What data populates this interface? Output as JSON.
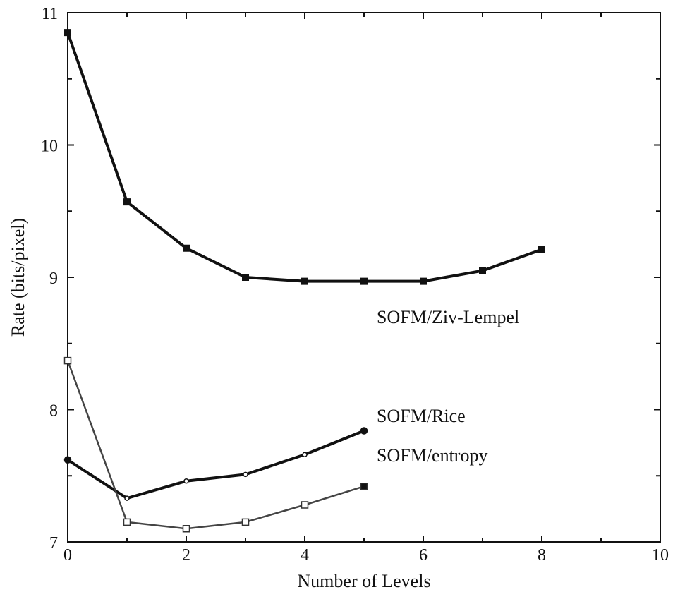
{
  "chart_data": {
    "type": "line",
    "title": "",
    "xlabel": "Number of Levels",
    "ylabel": "Rate (bits/pixel)",
    "xlim": [
      0,
      10
    ],
    "ylim": [
      7,
      11
    ],
    "xticks": [
      "0",
      "2",
      "4",
      "6",
      "8",
      "10"
    ],
    "yticks": [
      "7",
      "8",
      "9",
      "10",
      "11"
    ],
    "grid": false,
    "legend": "inline labels near line ends",
    "series": [
      {
        "name": "SOFM/Ziv-Lempel",
        "marker": "square-filled",
        "color": "#111111",
        "x": [
          0,
          1,
          2,
          3,
          4,
          5,
          6,
          7,
          8
        ],
        "y": [
          10.85,
          9.57,
          9.22,
          9.0,
          8.97,
          8.97,
          8.97,
          9.05,
          9.21
        ]
      },
      {
        "name": "SOFM/Rice",
        "marker": "circle",
        "color": "#111111",
        "x": [
          0,
          1,
          2,
          3,
          4,
          5
        ],
        "y": [
          7.62,
          7.33,
          7.46,
          7.51,
          7.66,
          7.84
        ]
      },
      {
        "name": "SOFM/entropy",
        "marker": "square-open",
        "color": "#444444",
        "x": [
          0,
          1,
          2,
          3,
          4,
          5
        ],
        "y": [
          8.37,
          7.15,
          7.1,
          7.15,
          7.28,
          7.42
        ]
      }
    ]
  }
}
